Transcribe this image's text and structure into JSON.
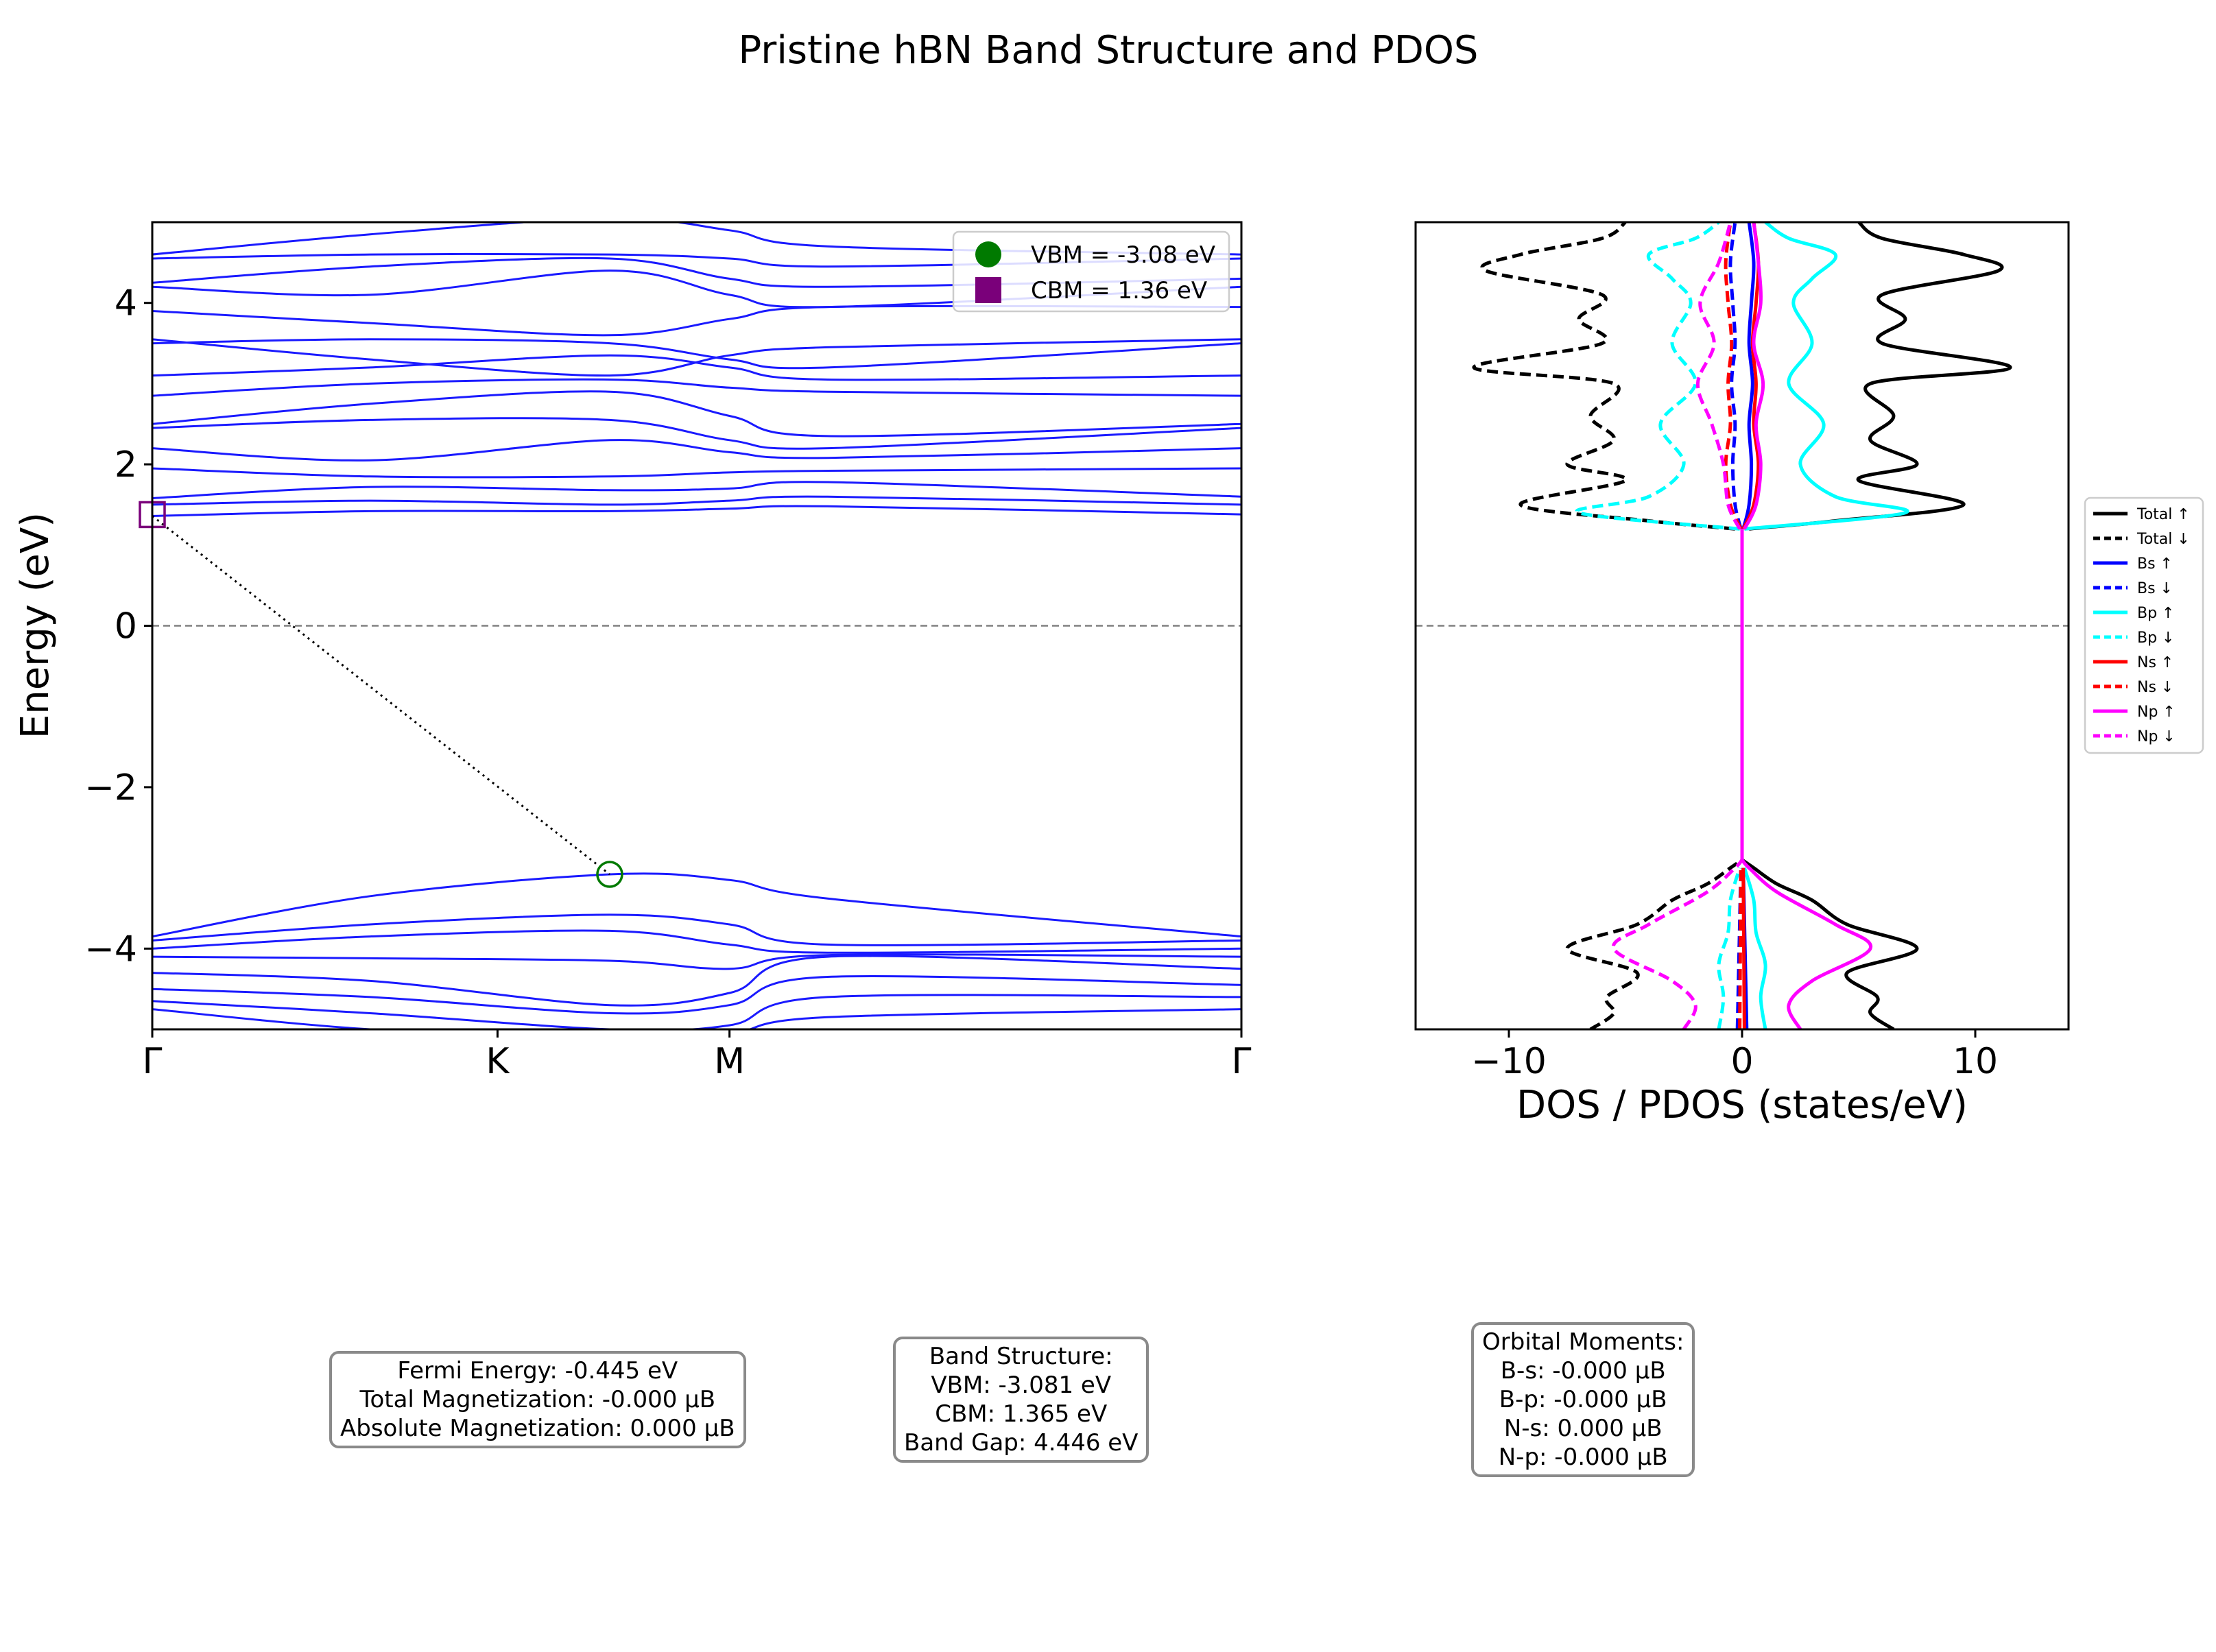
{
  "figure": {
    "title": "Pristine hBN Band Structure and PDOS"
  },
  "band_panel": {
    "ylabel": "Energy (eV)",
    "yticks": [
      "−4",
      "−2",
      "0",
      "2",
      "4"
    ],
    "kpoint_labels": [
      "Γ",
      "K",
      "M",
      "Γ"
    ],
    "legend": [
      {
        "label": "VBM = -3.08 eV",
        "marker": "circle",
        "color": "#007a00"
      },
      {
        "label": "CBM = 1.36 eV",
        "marker": "square",
        "color": "#7a007a"
      }
    ]
  },
  "dos_panel": {
    "xlabel": "DOS / PDOS (states/eV)",
    "xticks": [
      "−10",
      "0",
      "10"
    ],
    "legend": [
      {
        "label": "Total ↑",
        "color": "#000000",
        "dash": false
      },
      {
        "label": "Total ↓",
        "color": "#000000",
        "dash": true
      },
      {
        "label": "Bs ↑",
        "color": "#0000ff",
        "dash": false
      },
      {
        "label": "Bs ↓",
        "color": "#0000ff",
        "dash": true
      },
      {
        "label": "Bp ↑",
        "color": "#00ffff",
        "dash": false
      },
      {
        "label": "Bp ↓",
        "color": "#00ffff",
        "dash": true
      },
      {
        "label": "Ns ↑",
        "color": "#ff0000",
        "dash": false
      },
      {
        "label": "Ns ↓",
        "color": "#ff0000",
        "dash": true
      },
      {
        "label": "Np ↑",
        "color": "#ff00ff",
        "dash": false
      },
      {
        "label": "Np ↓",
        "color": "#ff00ff",
        "dash": true
      }
    ]
  },
  "info_boxes": {
    "fermi": [
      "Fermi Energy: -0.445 eV",
      "Total Magnetization: -0.000 μB",
      "Absolute Magnetization: 0.000 μB"
    ],
    "bands": [
      "Band Structure:",
      "VBM: -3.081 eV",
      "CBM: 1.365 eV",
      "Band Gap: 4.446 eV"
    ],
    "orbital": [
      "Orbital Moments:",
      "B-s: -0.000 μB",
      "B-p: -0.000 μB",
      "N-s: 0.000 μB",
      "N-p: -0.000 μB"
    ]
  },
  "chart_data": [
    {
      "type": "line",
      "name": "band-structure",
      "ylim": [
        -5,
        5
      ],
      "xlim": [
        0,
        1
      ],
      "kpoints": [
        {
          "label": "Γ",
          "x": 0
        },
        {
          "label": "K",
          "x": 0.317
        },
        {
          "label": "M",
          "x": 0.53
        },
        {
          "label": "Γ",
          "x": 1
        }
      ],
      "fermi_level": 0,
      "band_color": "#1a1aff",
      "vbm": {
        "x": 0.42,
        "y": -3.08
      },
      "cbm": {
        "x": 0,
        "y": 1.36
      },
      "valence_bands": [
        {
          "x": [
            0,
            0.2,
            0.42,
            0.53,
            0.62,
            1
          ],
          "y": [
            -3.85,
            -3.35,
            -3.08,
            -3.15,
            -3.38,
            -3.85
          ]
        },
        {
          "x": [
            0,
            0.2,
            0.42,
            0.53,
            0.62,
            1
          ],
          "y": [
            -3.9,
            -3.7,
            -3.58,
            -3.7,
            -3.95,
            -3.9
          ]
        },
        {
          "x": [
            0,
            0.2,
            0.42,
            0.53,
            0.62,
            1
          ],
          "y": [
            -4.0,
            -3.85,
            -3.78,
            -3.95,
            -4.05,
            -4.0
          ]
        },
        {
          "x": [
            0,
            0.2,
            0.42,
            0.53,
            0.62,
            1
          ],
          "y": [
            -4.1,
            -4.12,
            -4.15,
            -4.25,
            -4.08,
            -4.1
          ]
        },
        {
          "x": [
            0,
            0.2,
            0.42,
            0.53,
            0.62,
            1
          ],
          "y": [
            -4.3,
            -4.4,
            -4.7,
            -4.55,
            -4.1,
            -4.25
          ]
        },
        {
          "x": [
            0,
            0.2,
            0.42,
            0.53,
            0.62,
            1
          ],
          "y": [
            -4.5,
            -4.6,
            -4.8,
            -4.7,
            -4.35,
            -4.45
          ]
        },
        {
          "x": [
            0,
            0.2,
            0.42,
            0.53,
            0.62,
            1
          ],
          "y": [
            -4.65,
            -4.8,
            -5.0,
            -4.95,
            -4.6,
            -4.6
          ]
        },
        {
          "x": [
            0,
            0.2,
            0.42,
            0.53,
            0.62,
            1
          ],
          "y": [
            -4.75,
            -5.0,
            -5.1,
            -5.05,
            -4.85,
            -4.75
          ]
        }
      ],
      "conduction_bands": [
        {
          "x": [
            0,
            0.2,
            0.42,
            0.53,
            0.62,
            1
          ],
          "y": [
            1.36,
            1.42,
            1.42,
            1.45,
            1.48,
            1.38
          ]
        },
        {
          "x": [
            0,
            0.2,
            0.42,
            0.53,
            0.62,
            1
          ],
          "y": [
            1.5,
            1.55,
            1.5,
            1.55,
            1.6,
            1.5
          ]
        },
        {
          "x": [
            0,
            0.2,
            0.42,
            0.53,
            0.62,
            1
          ],
          "y": [
            1.58,
            1.72,
            1.68,
            1.7,
            1.78,
            1.6
          ]
        },
        {
          "x": [
            0,
            0.2,
            0.42,
            0.53,
            0.62,
            1
          ],
          "y": [
            1.95,
            1.85,
            1.85,
            1.9,
            1.92,
            1.95
          ]
        },
        {
          "x": [
            0,
            0.2,
            0.42,
            0.53,
            0.62,
            1
          ],
          "y": [
            2.2,
            2.05,
            2.3,
            2.15,
            2.08,
            2.2
          ]
        },
        {
          "x": [
            0,
            0.2,
            0.42,
            0.53,
            0.62,
            1
          ],
          "y": [
            2.45,
            2.55,
            2.55,
            2.3,
            2.2,
            2.45
          ]
        },
        {
          "x": [
            0,
            0.2,
            0.42,
            0.53,
            0.62,
            1
          ],
          "y": [
            2.5,
            2.75,
            2.9,
            2.6,
            2.35,
            2.5
          ]
        },
        {
          "x": [
            0,
            0.2,
            0.42,
            0.53,
            0.62,
            1
          ],
          "y": [
            2.85,
            3.0,
            3.05,
            2.95,
            2.9,
            2.85
          ]
        },
        {
          "x": [
            0,
            0.2,
            0.42,
            0.53,
            0.62,
            1
          ],
          "y": [
            3.1,
            3.2,
            3.35,
            3.2,
            3.05,
            3.1
          ]
        },
        {
          "x": [
            0,
            0.2,
            0.42,
            0.53,
            0.62,
            1
          ],
          "y": [
            3.5,
            3.55,
            3.5,
            3.3,
            3.2,
            3.5
          ]
        },
        {
          "x": [
            0,
            0.2,
            0.42,
            0.53,
            0.62,
            1
          ],
          "y": [
            3.55,
            3.3,
            3.1,
            3.35,
            3.45,
            3.55
          ]
        },
        {
          "x": [
            0,
            0.2,
            0.42,
            0.53,
            0.62,
            1
          ],
          "y": [
            3.9,
            3.75,
            3.6,
            3.8,
            3.95,
            3.95
          ]
        },
        {
          "x": [
            0,
            0.2,
            0.42,
            0.53,
            0.62,
            1
          ],
          "y": [
            4.2,
            4.1,
            4.4,
            4.1,
            3.95,
            4.2
          ]
        },
        {
          "x": [
            0,
            0.2,
            0.42,
            0.53,
            0.62,
            1
          ],
          "y": [
            4.25,
            4.45,
            4.55,
            4.3,
            4.2,
            4.3
          ]
        },
        {
          "x": [
            0,
            0.2,
            0.42,
            0.53,
            0.62,
            1
          ],
          "y": [
            4.55,
            4.6,
            4.6,
            4.55,
            4.45,
            4.55
          ]
        },
        {
          "x": [
            0,
            0.2,
            0.42,
            0.53,
            0.62,
            1
          ],
          "y": [
            4.6,
            4.85,
            5.05,
            4.9,
            4.7,
            4.6
          ]
        }
      ]
    },
    {
      "type": "line",
      "name": "dos-pdos",
      "orientation": "horizontal",
      "xlim": [
        -14,
        14
      ],
      "ylim": [
        -5,
        5
      ],
      "fermi_level": 0,
      "series": [
        {
          "name": "Total ↑",
          "color": "#000000",
          "dash": false,
          "energy": [
            -5,
            -4.8,
            -4.6,
            -4.3,
            -4.0,
            -3.7,
            -3.4,
            -3.2,
            -3.0,
            -2.9,
            1.2,
            1.3,
            1.5,
            1.8,
            2.0,
            2.3,
            2.6,
            3.0,
            3.2,
            3.5,
            3.8,
            4.1,
            4.4,
            4.6,
            4.8,
            5.0
          ],
          "dos": [
            6.5,
            5.5,
            5.8,
            4.5,
            7.5,
            4.5,
            3.0,
            1.5,
            0.5,
            0,
            0.3,
            4.0,
            9.5,
            5.0,
            7.5,
            5.5,
            6.5,
            5.5,
            11.5,
            6.0,
            7.0,
            6.0,
            11.0,
            9.5,
            6.0,
            5.0
          ]
        },
        {
          "name": "Total ↓",
          "color": "#000000",
          "dash": true,
          "energy": [
            -5,
            -4.8,
            -4.6,
            -4.3,
            -4.0,
            -3.7,
            -3.4,
            -3.2,
            -3.0,
            -2.9,
            1.2,
            1.3,
            1.5,
            1.8,
            2.0,
            2.3,
            2.6,
            3.0,
            3.2,
            3.5,
            3.8,
            4.1,
            4.4,
            4.6,
            4.8,
            5.0
          ],
          "dos": [
            -6.5,
            -5.5,
            -5.8,
            -4.5,
            -7.5,
            -4.5,
            -3.0,
            -1.5,
            -0.5,
            0,
            -0.3,
            -4.0,
            -9.5,
            -5.0,
            -7.5,
            -5.5,
            -6.5,
            -5.5,
            -11.5,
            -6.0,
            -7.0,
            -6.0,
            -11.0,
            -9.5,
            -6.0,
            -5.0
          ]
        },
        {
          "name": "Bs ↑",
          "color": "#0000ff",
          "dash": false,
          "energy": [
            -5,
            -3,
            1.2,
            1.5,
            2.0,
            2.5,
            3.0,
            3.5,
            4.0,
            4.5,
            5.0
          ],
          "dos": [
            0.2,
            0.05,
            0.05,
            0.3,
            0.4,
            0.3,
            0.45,
            0.3,
            0.4,
            0.5,
            0.3
          ]
        },
        {
          "name": "Bs ↓",
          "color": "#0000ff",
          "dash": true,
          "energy": [
            -5,
            -3,
            1.2,
            1.5,
            2.0,
            2.5,
            3.0,
            3.5,
            4.0,
            4.5,
            5.0
          ],
          "dos": [
            -0.2,
            -0.05,
            -0.05,
            -0.3,
            -0.4,
            -0.3,
            -0.45,
            -0.3,
            -0.4,
            -0.5,
            -0.3
          ]
        },
        {
          "name": "Bp ↑",
          "color": "#00ffff",
          "dash": false,
          "energy": [
            -5,
            -4.6,
            -4.2,
            -3.8,
            -3.4,
            -3.0,
            1.2,
            1.4,
            1.6,
            2.0,
            2.5,
            3.0,
            3.5,
            4.0,
            4.3,
            4.6,
            4.8,
            5.0
          ],
          "dos": [
            1.0,
            0.8,
            1.0,
            0.6,
            0.5,
            0.1,
            0.1,
            7.0,
            4.0,
            2.5,
            3.5,
            2.0,
            3.0,
            2.2,
            3.0,
            4.0,
            2.0,
            1.0
          ]
        },
        {
          "name": "Bp ↓",
          "color": "#00ffff",
          "dash": true,
          "energy": [
            -5,
            -4.6,
            -4.2,
            -3.8,
            -3.4,
            -3.0,
            1.2,
            1.4,
            1.6,
            2.0,
            2.5,
            3.0,
            3.5,
            4.0,
            4.3,
            4.6,
            4.8,
            5.0
          ],
          "dos": [
            -1.0,
            -0.8,
            -1.0,
            -0.6,
            -0.5,
            -0.1,
            -0.1,
            -7.0,
            -4.0,
            -2.5,
            -3.5,
            -2.0,
            -3.0,
            -2.2,
            -3.0,
            -4.0,
            -2.0,
            -1.0
          ]
        },
        {
          "name": "Ns ↑",
          "color": "#ff0000",
          "dash": false,
          "energy": [
            -5,
            -3,
            1.2,
            1.5,
            2.0,
            2.5,
            3.0,
            3.5,
            4.0,
            4.5,
            5.0
          ],
          "dos": [
            0.1,
            0.05,
            0.05,
            0.5,
            0.7,
            0.5,
            0.6,
            0.45,
            0.6,
            0.7,
            0.5
          ]
        },
        {
          "name": "Ns ↓",
          "color": "#ff0000",
          "dash": true,
          "energy": [
            -5,
            -3,
            1.2,
            1.5,
            2.0,
            2.5,
            3.0,
            3.5,
            4.0,
            4.5,
            5.0
          ],
          "dos": [
            -0.1,
            -0.05,
            -0.05,
            -0.5,
            -0.7,
            -0.5,
            -0.6,
            -0.45,
            -0.6,
            -0.7,
            -0.5
          ]
        },
        {
          "name": "Np ↑",
          "color": "#ff00ff",
          "dash": false,
          "energy": [
            -5,
            -4.7,
            -4.4,
            -4.0,
            -3.7,
            -3.3,
            -3.0,
            -2.9,
            1.2,
            1.5,
            2.0,
            2.5,
            3.0,
            3.5,
            4.0,
            4.5,
            5.0
          ],
          "dos": [
            2.5,
            2.0,
            3.0,
            5.5,
            4.0,
            1.5,
            0.3,
            0,
            0.1,
            0.6,
            0.8,
            0.6,
            0.9,
            0.5,
            0.8,
            0.7,
            0.5
          ]
        },
        {
          "name": "Np ↓",
          "color": "#ff00ff",
          "dash": true,
          "energy": [
            -5,
            -4.7,
            -4.4,
            -4.0,
            -3.7,
            -3.3,
            -3.0,
            -2.9,
            1.2,
            1.5,
            2.0,
            2.5,
            3.0,
            3.5,
            4.0,
            4.5,
            5.0
          ],
          "dos": [
            -2.5,
            -2.0,
            -3.0,
            -5.5,
            -4.0,
            -1.5,
            -0.3,
            0,
            -0.1,
            -0.6,
            -0.8,
            -1.3,
            -1.9,
            -1.2,
            -1.8,
            -1.0,
            -0.5
          ]
        }
      ]
    }
  ]
}
